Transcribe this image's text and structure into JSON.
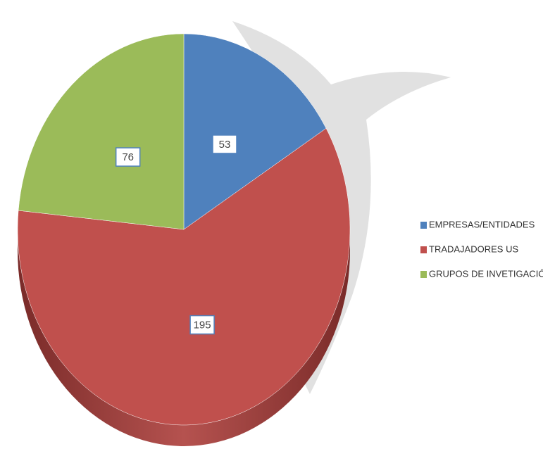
{
  "chart_data": {
    "type": "pie",
    "categories": [
      "EMPRESAS/ENTIDADES",
      "TRADAJADORES US",
      "GRUPOS DE INVETIGACIÓN"
    ],
    "values": [
      53,
      195,
      76
    ],
    "colors": [
      "#4f81bd",
      "#c0504d",
      "#9bbb59"
    ],
    "legend": "right"
  }
}
